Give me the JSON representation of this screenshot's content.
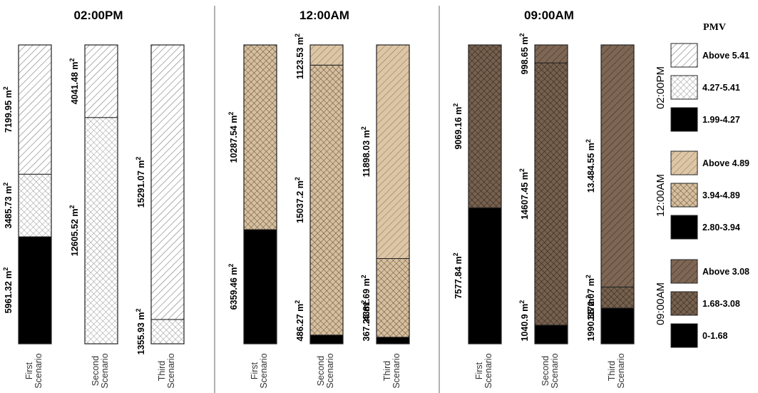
{
  "chart_data": [
    {
      "type": "bar",
      "stacked": true,
      "title": "02:00PM",
      "unit": "m",
      "categories": [
        "First\nScenario",
        "Second\nScenario",
        "Third\nScenario"
      ],
      "series": [
        {
          "name": "1.99-4.27",
          "values": [
            5961.32,
            0,
            0
          ]
        },
        {
          "name": "4.27-5.41",
          "values": [
            3485.73,
            12605.52,
            1355.93
          ]
        },
        {
          "name": "Above 5.41",
          "values": [
            7199.95,
            4041.48,
            15291.07
          ]
        }
      ],
      "labels": [
        [
          "5961.32",
          "3485.73",
          "7199.95"
        ],
        [
          "",
          "12605.52",
          "4041.48"
        ],
        [
          "",
          "1355.93",
          "15291.07"
        ]
      ],
      "colors": {
        "fill": "#ffffff",
        "hatch": "#888888",
        "solid": "#000000"
      }
    },
    {
      "type": "bar",
      "stacked": true,
      "title": "12:00AM",
      "unit": "m",
      "categories": [
        "First\nScenario",
        "Second\nScenario",
        "Third\nScenario"
      ],
      "series": [
        {
          "name": "2.80-3.94",
          "values": [
            6359.46,
            486.27,
            367.28
          ]
        },
        {
          "name": "3.94-4.89",
          "values": [
            10287.54,
            15037.2,
            4381.69
          ]
        },
        {
          "name": "Above 4.89",
          "values": [
            0,
            1123.53,
            11898.03
          ]
        }
      ],
      "labels": [
        [
          "6359.46",
          "10287.54",
          ""
        ],
        [
          "486.27",
          "15037.2",
          "1123.53"
        ],
        [
          "367.28",
          "4381.69",
          "11898.03"
        ]
      ],
      "colors": {
        "fill": "#dcc6a6",
        "hatch": "#5a4a3a",
        "solid": "#000000"
      }
    },
    {
      "type": "bar",
      "stacked": true,
      "title": "09:00AM",
      "unit": "m",
      "categories": [
        "First\nScenario",
        "Second\nScenario",
        "Third\nScenario"
      ],
      "series": [
        {
          "name": "0-1.68",
          "values": [
            7577.84,
            1040.9,
            1990.38
          ]
        },
        {
          "name": "1.68-3.08",
          "values": [
            9069.16,
            14607.45,
            1172.07
          ]
        },
        {
          "name": "Above 3.08",
          "values": [
            0,
            998.65,
            13484.55
          ]
        }
      ],
      "labels": [
        [
          "7577.84",
          "9069.16",
          ""
        ],
        [
          "1040.9",
          "14607.45",
          "998.65"
        ],
        [
          "1990.38",
          "1172.07",
          "13.484.55"
        ]
      ],
      "colors": {
        "fill": "#7e6654",
        "hatch": "#2a1f18",
        "solid": "#000000"
      }
    }
  ],
  "legend": {
    "title": "PMV",
    "groups": [
      {
        "name": "02:00PM",
        "items": [
          "Above 5.41",
          "4.27-5.41",
          "1.99-4.27"
        ]
      },
      {
        "name": "12:00AM",
        "items": [
          "Above 4.89",
          "3.94-4.89",
          "2.80-3.94"
        ]
      },
      {
        "name": "09:00AM",
        "items": [
          "Above 3.08",
          "1.68-3.08",
          "0-1.68"
        ]
      }
    ]
  }
}
